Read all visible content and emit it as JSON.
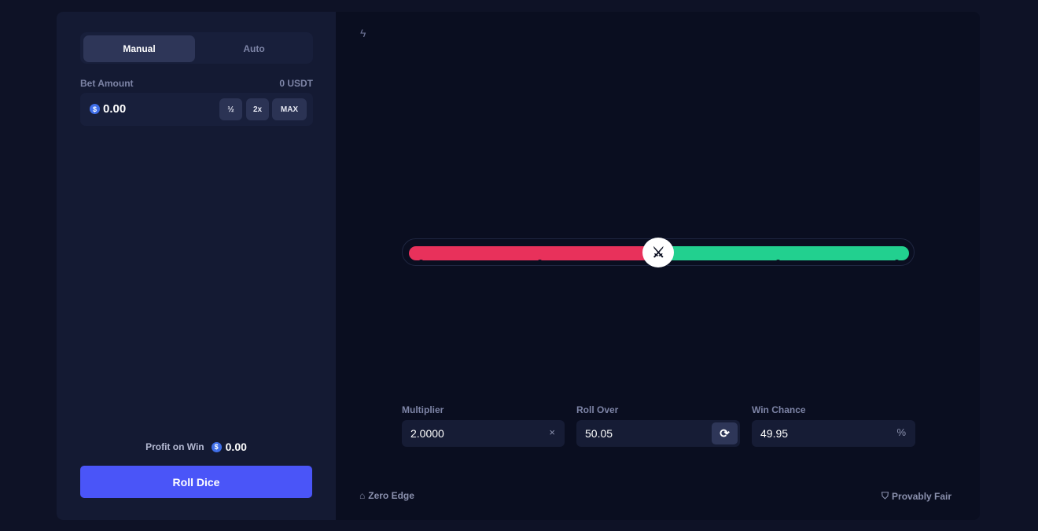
{
  "tabs": {
    "manual": "Manual",
    "auto": "Auto",
    "active": "Manual"
  },
  "bet": {
    "label": "Bet Amount",
    "balance": "0 USDT",
    "value": "0.00",
    "half": "½",
    "double": "2x",
    "max": "MAX",
    "currency_icon": "dollar-coin-icon"
  },
  "profit": {
    "label": "Profit on Win",
    "value": "0.00"
  },
  "roll_button": "Roll Dice",
  "slider": {
    "roll_over": 50.05,
    "lose_color": "#e8315b",
    "win_color": "#22d08f"
  },
  "fields": {
    "multiplier": {
      "label": "Multiplier",
      "value": "2.0000",
      "icon": "×"
    },
    "roll_over": {
      "label": "Roll Over",
      "value": "50.05"
    },
    "win_chance": {
      "label": "Win Chance",
      "value": "49.95",
      "icon": "%"
    }
  },
  "footer": {
    "zero_edge": "Zero Edge",
    "provably_fair": "Provably Fair"
  },
  "colors": {
    "accent": "#4a55f8"
  }
}
